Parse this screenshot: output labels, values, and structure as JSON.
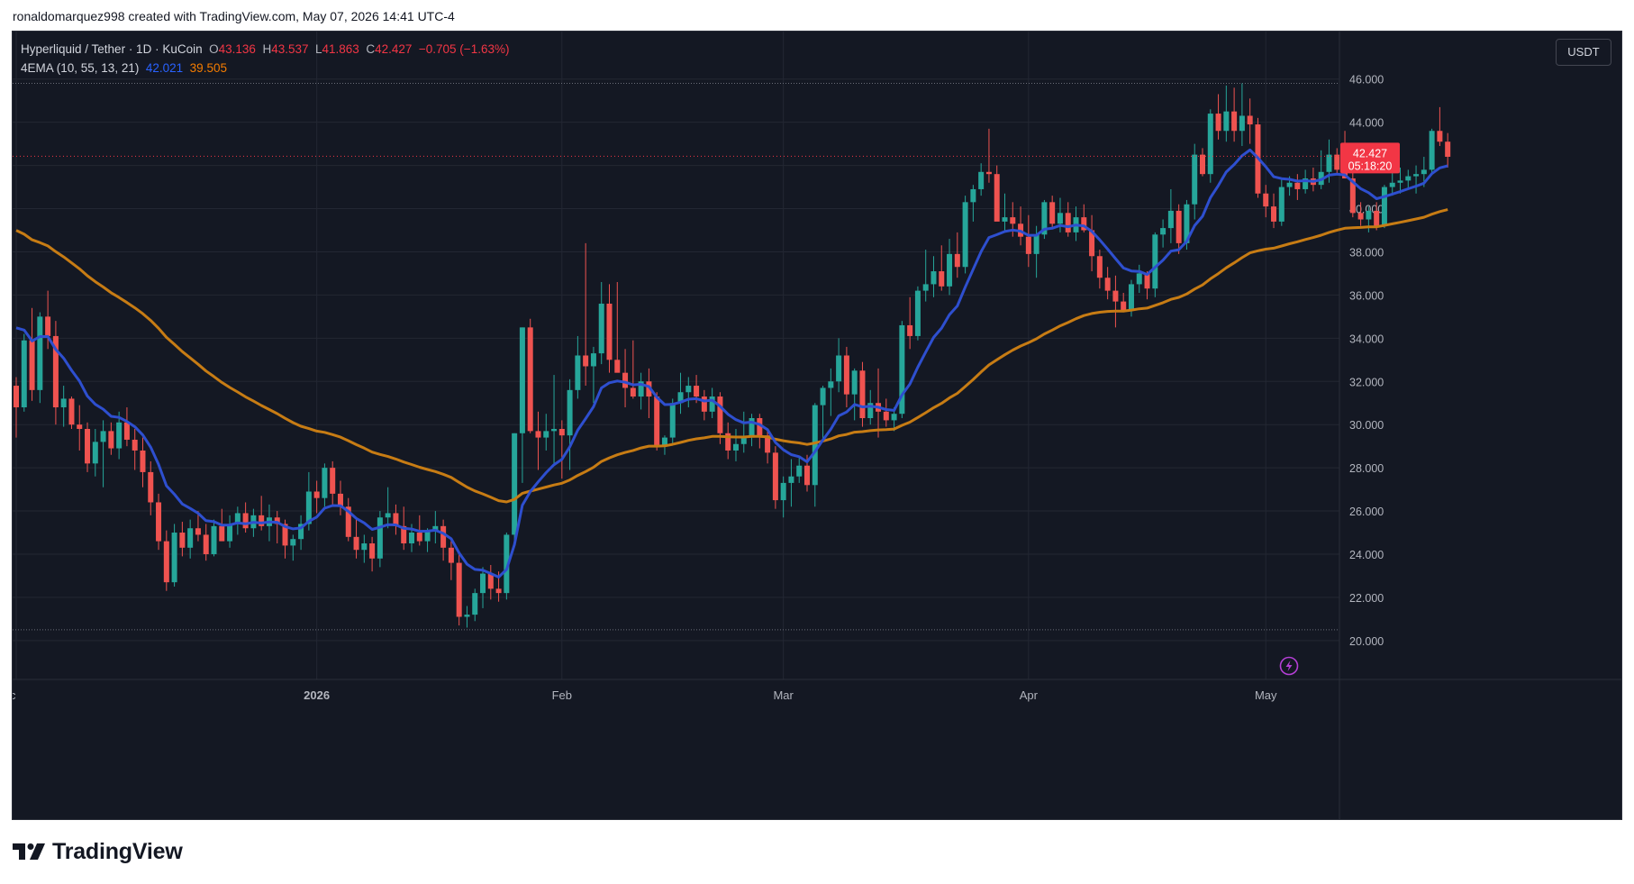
{
  "attribution": "ronaldomarquez998 created with TradingView.com, May 07, 2026 14:41 UTC-4",
  "legend": {
    "symbol": "Hyperliquid / Tether · 1D · KuCoin",
    "open_label": "O",
    "open": "43.136",
    "high_label": "H",
    "high": "43.537",
    "low_label": "L",
    "low": "41.863",
    "close_label": "C",
    "close": "42.427",
    "change": "−0.705 (−1.63%)",
    "indicator": "4EMA (10, 55, 13, 21)",
    "ema_fast_value": "42.021",
    "ema_slow_value": "39.505"
  },
  "currency": "USDT",
  "last_price": {
    "value": "42.427",
    "countdown": "05:18:20"
  },
  "brand": "TradingView",
  "colors": {
    "background": "#141823",
    "grid": "#232733",
    "text": "#b2b5be",
    "up": "#26a69a",
    "down": "#ef5350",
    "ema_fast": "#2e4fcf",
    "ema_slow": "#c77c14",
    "last_price_bg": "#f23645"
  },
  "chart_data": {
    "type": "candlestick",
    "ylim": [
      18.2,
      48.2
    ],
    "y_ticks": [
      "20.000",
      "22.000",
      "24.000",
      "26.000",
      "28.000",
      "30.000",
      "32.000",
      "34.000",
      "36.000",
      "38.000",
      "40.000",
      "42.000",
      "44.000",
      "46.000"
    ],
    "x_labels": [
      {
        "index": 0,
        "text": "Dec"
      },
      {
        "index": 38,
        "text": "2026"
      },
      {
        "index": 69,
        "text": "Feb"
      },
      {
        "index": 97,
        "text": "Mar"
      },
      {
        "index": 128,
        "text": "Apr"
      },
      {
        "index": 158,
        "text": "May"
      }
    ],
    "dotted_levels": [
      45.8,
      20.5
    ],
    "last_price_level": 42.427,
    "ohlc": [
      [
        31.8,
        32.2,
        29.4,
        30.8
      ],
      [
        30.8,
        34.2,
        30.6,
        33.9
      ],
      [
        33.9,
        35.4,
        31.1,
        31.6
      ],
      [
        31.6,
        35.2,
        31.0,
        35.0
      ],
      [
        35.0,
        36.2,
        33.5,
        34.1
      ],
      [
        34.1,
        34.8,
        30.0,
        30.8
      ],
      [
        30.8,
        31.8,
        29.9,
        31.2
      ],
      [
        31.2,
        31.3,
        29.8,
        30.0
      ],
      [
        30.0,
        30.9,
        28.8,
        29.8
      ],
      [
        29.8,
        30.1,
        27.8,
        28.2
      ],
      [
        28.2,
        29.8,
        27.6,
        29.2
      ],
      [
        29.2,
        30.2,
        27.1,
        29.7
      ],
      [
        29.7,
        30.1,
        28.6,
        28.9
      ],
      [
        28.9,
        30.6,
        28.4,
        30.1
      ],
      [
        30.1,
        30.8,
        29.0,
        29.3
      ],
      [
        29.3,
        29.8,
        27.9,
        28.8
      ],
      [
        28.8,
        29.4,
        27.1,
        27.8
      ],
      [
        27.8,
        28.3,
        25.8,
        26.4
      ],
      [
        26.4,
        26.8,
        24.2,
        24.6
      ],
      [
        24.6,
        25.1,
        22.3,
        22.7
      ],
      [
        22.7,
        25.4,
        22.5,
        25.0
      ],
      [
        25.0,
        25.5,
        23.9,
        24.3
      ],
      [
        24.3,
        25.6,
        23.8,
        25.2
      ],
      [
        25.2,
        26.0,
        24.6,
        24.9
      ],
      [
        24.9,
        25.4,
        23.7,
        24.0
      ],
      [
        24.0,
        25.6,
        23.9,
        25.3
      ],
      [
        25.3,
        26.1,
        24.7,
        24.6
      ],
      [
        24.6,
        25.8,
        24.3,
        25.4
      ],
      [
        25.4,
        26.2,
        24.9,
        25.9
      ],
      [
        25.9,
        26.4,
        25.0,
        25.2
      ],
      [
        25.2,
        26.1,
        24.8,
        25.8
      ],
      [
        25.8,
        26.7,
        25.1,
        25.3
      ],
      [
        25.3,
        26.3,
        24.6,
        25.7
      ],
      [
        25.7,
        26.0,
        24.5,
        25.4
      ],
      [
        25.4,
        25.6,
        23.8,
        24.4
      ],
      [
        24.4,
        24.9,
        23.7,
        24.7
      ],
      [
        24.7,
        25.8,
        24.2,
        25.4
      ],
      [
        25.4,
        27.8,
        25.1,
        26.9
      ],
      [
        26.9,
        27.4,
        25.9,
        26.6
      ],
      [
        26.6,
        28.2,
        26.2,
        28.0
      ],
      [
        28.0,
        28.3,
        26.2,
        26.8
      ],
      [
        26.8,
        27.4,
        25.8,
        26.2
      ],
      [
        26.2,
        26.6,
        24.6,
        24.8
      ],
      [
        24.8,
        25.6,
        23.8,
        24.2
      ],
      [
        24.2,
        24.9,
        23.6,
        24.5
      ],
      [
        24.5,
        24.8,
        23.2,
        23.8
      ],
      [
        23.8,
        26.0,
        23.4,
        25.7
      ],
      [
        25.7,
        27.1,
        25.2,
        25.9
      ],
      [
        25.9,
        26.3,
        24.9,
        25.3
      ],
      [
        25.3,
        26.2,
        24.2,
        24.5
      ],
      [
        24.5,
        25.4,
        24.1,
        25.0
      ],
      [
        25.0,
        25.8,
        24.4,
        24.6
      ],
      [
        24.6,
        25.2,
        24.1,
        25.1
      ],
      [
        25.1,
        26.0,
        24.5,
        25.3
      ],
      [
        25.3,
        25.6,
        23.7,
        24.3
      ],
      [
        24.3,
        24.6,
        22.8,
        23.6
      ],
      [
        23.6,
        24.0,
        20.7,
        21.1
      ],
      [
        21.1,
        21.6,
        20.6,
        21.2
      ],
      [
        21.2,
        22.4,
        20.9,
        22.2
      ],
      [
        22.2,
        23.4,
        21.5,
        23.1
      ],
      [
        23.1,
        23.5,
        21.9,
        22.4
      ],
      [
        22.4,
        23.2,
        21.8,
        22.2
      ],
      [
        22.2,
        25.0,
        21.9,
        24.9
      ],
      [
        24.9,
        29.6,
        24.5,
        29.6
      ],
      [
        29.6,
        34.5,
        27.3,
        34.5
      ],
      [
        34.5,
        34.9,
        29.6,
        29.7
      ],
      [
        29.7,
        30.6,
        27.9,
        29.4
      ],
      [
        29.4,
        30.5,
        28.8,
        29.7
      ],
      [
        29.7,
        32.3,
        28.2,
        29.8
      ],
      [
        29.8,
        30.2,
        27.5,
        29.5
      ],
      [
        29.5,
        32.1,
        27.9,
        31.6
      ],
      [
        31.6,
        34.1,
        31.2,
        33.2
      ],
      [
        33.2,
        38.4,
        31.8,
        32.7
      ],
      [
        32.7,
        33.6,
        31.0,
        33.3
      ],
      [
        33.3,
        36.6,
        32.8,
        35.6
      ],
      [
        35.6,
        36.5,
        32.4,
        33.0
      ],
      [
        33.0,
        36.6,
        32.5,
        32.4
      ],
      [
        32.4,
        33.5,
        30.8,
        31.7
      ],
      [
        31.7,
        33.9,
        31.2,
        31.3
      ],
      [
        31.3,
        32.4,
        30.7,
        32.0
      ],
      [
        32.0,
        32.6,
        30.3,
        31.3
      ],
      [
        31.3,
        31.5,
        28.8,
        29.0
      ],
      [
        29.0,
        29.5,
        28.6,
        29.4
      ],
      [
        29.4,
        31.2,
        29.1,
        31.0
      ],
      [
        31.0,
        32.4,
        30.5,
        31.5
      ],
      [
        31.5,
        32.2,
        30.8,
        31.8
      ],
      [
        31.8,
        32.3,
        31.0,
        31.3
      ],
      [
        31.3,
        31.6,
        30.2,
        30.6
      ],
      [
        30.6,
        31.7,
        30.3,
        31.3
      ],
      [
        31.3,
        31.5,
        29.1,
        29.6
      ],
      [
        29.6,
        30.1,
        28.4,
        28.8
      ],
      [
        28.8,
        29.8,
        28.3,
        29.1
      ],
      [
        29.1,
        30.6,
        28.7,
        29.4
      ],
      [
        29.4,
        30.5,
        29.0,
        30.3
      ],
      [
        30.3,
        30.5,
        28.9,
        29.5
      ],
      [
        29.5,
        29.8,
        28.2,
        28.7
      ],
      [
        28.7,
        29.0,
        26.1,
        26.5
      ],
      [
        26.5,
        27.6,
        25.7,
        27.3
      ],
      [
        27.3,
        28.4,
        26.2,
        27.6
      ],
      [
        27.6,
        28.5,
        27.3,
        28.1
      ],
      [
        28.1,
        28.6,
        26.9,
        27.2
      ],
      [
        27.2,
        31.0,
        26.2,
        30.9
      ],
      [
        30.9,
        31.8,
        29.3,
        31.7
      ],
      [
        31.7,
        32.6,
        30.4,
        32.0
      ],
      [
        32.0,
        34.0,
        31.5,
        33.2
      ],
      [
        33.2,
        33.6,
        30.8,
        31.4
      ],
      [
        31.4,
        32.6,
        30.2,
        32.5
      ],
      [
        32.5,
        32.9,
        29.9,
        30.3
      ],
      [
        30.3,
        31.6,
        30.0,
        31.0
      ],
      [
        31.0,
        32.6,
        29.4,
        30.6
      ],
      [
        30.6,
        31.2,
        29.9,
        30.2
      ],
      [
        30.2,
        30.8,
        29.7,
        30.5
      ],
      [
        30.5,
        34.8,
        30.3,
        34.6
      ],
      [
        34.6,
        35.9,
        33.5,
        34.1
      ],
      [
        34.1,
        36.4,
        33.9,
        36.2
      ],
      [
        36.2,
        38.1,
        35.7,
        36.5
      ],
      [
        36.5,
        37.8,
        35.9,
        37.1
      ],
      [
        37.1,
        38.3,
        36.2,
        36.4
      ],
      [
        36.4,
        38.6,
        36.0,
        37.9
      ],
      [
        37.9,
        38.9,
        36.8,
        37.3
      ],
      [
        37.3,
        40.6,
        37.0,
        40.3
      ],
      [
        40.3,
        41.1,
        39.4,
        40.9
      ],
      [
        40.9,
        42.1,
        40.6,
        41.7
      ],
      [
        41.7,
        43.7,
        41.2,
        41.6
      ],
      [
        41.6,
        42.0,
        39.5,
        39.4
      ],
      [
        39.4,
        40.7,
        38.9,
        39.6
      ],
      [
        39.6,
        40.3,
        38.7,
        39.3
      ],
      [
        39.3,
        40.1,
        38.3,
        38.7
      ],
      [
        38.7,
        39.7,
        37.3,
        37.9
      ],
      [
        37.9,
        39.2,
        36.8,
        38.8
      ],
      [
        38.8,
        40.4,
        38.6,
        40.3
      ],
      [
        40.3,
        40.6,
        39.1,
        39.3
      ],
      [
        39.3,
        40.5,
        38.9,
        39.8
      ],
      [
        39.8,
        40.3,
        38.7,
        38.9
      ],
      [
        38.9,
        40.1,
        38.5,
        39.6
      ],
      [
        39.6,
        40.2,
        38.9,
        39.0
      ],
      [
        39.0,
        39.7,
        37.1,
        37.8
      ],
      [
        37.8,
        38.1,
        36.3,
        36.8
      ],
      [
        36.8,
        37.3,
        35.8,
        36.2
      ],
      [
        36.2,
        36.9,
        34.5,
        35.7
      ],
      [
        35.7,
        36.1,
        35.2,
        35.3
      ],
      [
        35.3,
        36.7,
        35.0,
        36.5
      ],
      [
        36.5,
        37.4,
        36.1,
        37.0
      ],
      [
        37.0,
        37.1,
        35.8,
        36.3
      ],
      [
        36.3,
        38.9,
        35.9,
        38.8
      ],
      [
        38.8,
        39.5,
        38.2,
        39.1
      ],
      [
        39.1,
        40.9,
        38.4,
        39.9
      ],
      [
        39.9,
        40.2,
        37.9,
        38.4
      ],
      [
        38.4,
        40.4,
        38.1,
        40.2
      ],
      [
        40.2,
        43.0,
        39.5,
        42.5
      ],
      [
        42.5,
        42.8,
        41.5,
        41.6
      ],
      [
        41.6,
        44.6,
        41.2,
        44.4
      ],
      [
        44.4,
        45.3,
        43.2,
        43.6
      ],
      [
        43.6,
        45.7,
        43.1,
        44.5
      ],
      [
        44.5,
        45.6,
        43.1,
        43.6
      ],
      [
        43.6,
        45.8,
        42.9,
        44.3
      ],
      [
        44.3,
        45.1,
        43.0,
        43.9
      ],
      [
        43.9,
        44.2,
        40.5,
        40.7
      ],
      [
        40.7,
        41.1,
        39.6,
        40.1
      ],
      [
        40.1,
        40.7,
        39.1,
        39.4
      ],
      [
        39.4,
        41.4,
        39.2,
        41.0
      ],
      [
        41.0,
        41.5,
        40.6,
        41.2
      ],
      [
        41.2,
        41.6,
        40.4,
        40.9
      ],
      [
        40.9,
        41.8,
        40.7,
        41.4
      ],
      [
        41.4,
        41.9,
        40.8,
        41.1
      ],
      [
        41.1,
        42.7,
        40.9,
        41.7
      ],
      [
        41.7,
        43.2,
        41.2,
        42.5
      ],
      [
        42.5,
        42.8,
        41.6,
        41.8
      ],
      [
        41.8,
        43.6,
        41.4,
        41.4
      ],
      [
        41.4,
        42.0,
        39.6,
        39.8
      ],
      [
        39.8,
        40.3,
        39.2,
        39.5
      ],
      [
        39.5,
        40.1,
        38.9,
        39.9
      ],
      [
        39.9,
        40.3,
        39.0,
        39.2
      ],
      [
        39.2,
        41.1,
        39.1,
        41.0
      ],
      [
        41.0,
        42.2,
        40.6,
        41.2
      ],
      [
        41.2,
        41.9,
        40.7,
        41.3
      ],
      [
        41.3,
        41.8,
        40.9,
        41.5
      ],
      [
        41.5,
        42.0,
        40.7,
        41.6
      ],
      [
        41.6,
        42.4,
        41.0,
        41.8
      ],
      [
        41.8,
        43.7,
        41.6,
        43.6
      ],
      [
        43.6,
        44.7,
        42.9,
        43.1
      ],
      [
        43.1,
        43.5,
        41.9,
        42.4
      ]
    ]
  }
}
